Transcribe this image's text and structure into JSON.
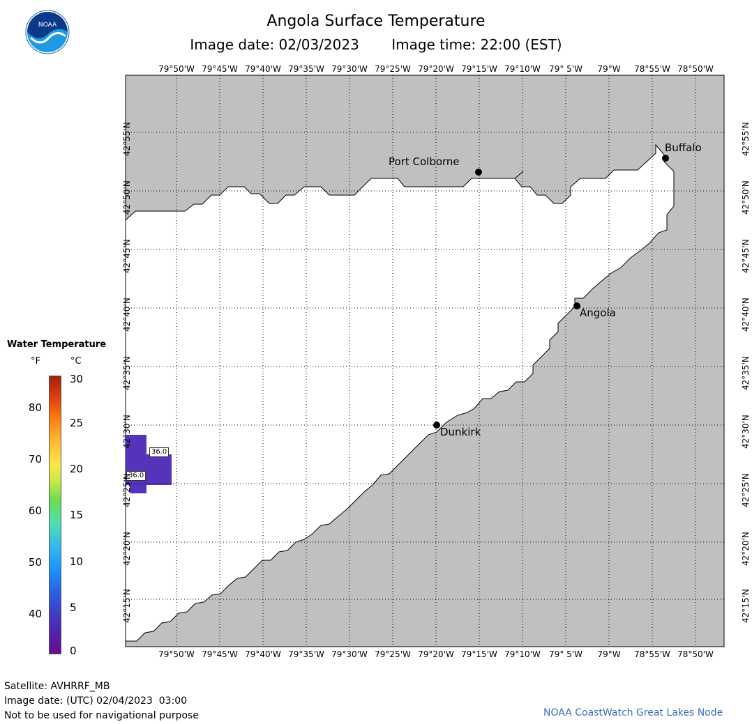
{
  "header": {
    "title": "Angola Surface Temperature",
    "image_date": "Image date: 02/03/2023",
    "image_time": "Image time: 22:00 (EST)"
  },
  "logo": {
    "text": "NOAA",
    "icon": "noaa-logo-icon"
  },
  "map": {
    "lon_ticks": [
      "79°50'W",
      "79°45'W",
      "79°40'W",
      "79°35'W",
      "79°30'W",
      "79°25'W",
      "79°20'W",
      "79°15'W",
      "79°10'W",
      "79° 5'W",
      "79°W",
      "78°55'W",
      "78°50'W"
    ],
    "lat_ticks": [
      "42°55'N",
      "42°50'N",
      "42°45'N",
      "42°40'N",
      "42°35'N",
      "42°30'N",
      "42°25'N",
      "42°20'N",
      "42°15'N"
    ],
    "cities": [
      {
        "name": "Port Colborne"
      },
      {
        "name": "Buffalo"
      },
      {
        "name": "Angola"
      },
      {
        "name": "Dunkirk"
      }
    ],
    "temp_labels": [
      "36.0",
      "36.0"
    ],
    "colors": {
      "land": "#c0c0c0",
      "water": "#ffffff",
      "temp_patch": "#5533bb"
    }
  },
  "legend": {
    "title": "Water Temperature",
    "unit_f": "°F",
    "unit_c": "°C",
    "f_ticks": [
      "80",
      "70",
      "60",
      "50",
      "40"
    ],
    "c_ticks": [
      "30",
      "25",
      "20",
      "15",
      "10",
      "5",
      "0"
    ]
  },
  "footer": {
    "satellite": "Satellite: AVHRRF_MB",
    "utc_date": "Image date: (UTC) 02/04/2023  03:00",
    "disclaimer": "Not to be used for navigational purpose",
    "credit": "NOAA CoastWatch Great Lakes Node"
  }
}
